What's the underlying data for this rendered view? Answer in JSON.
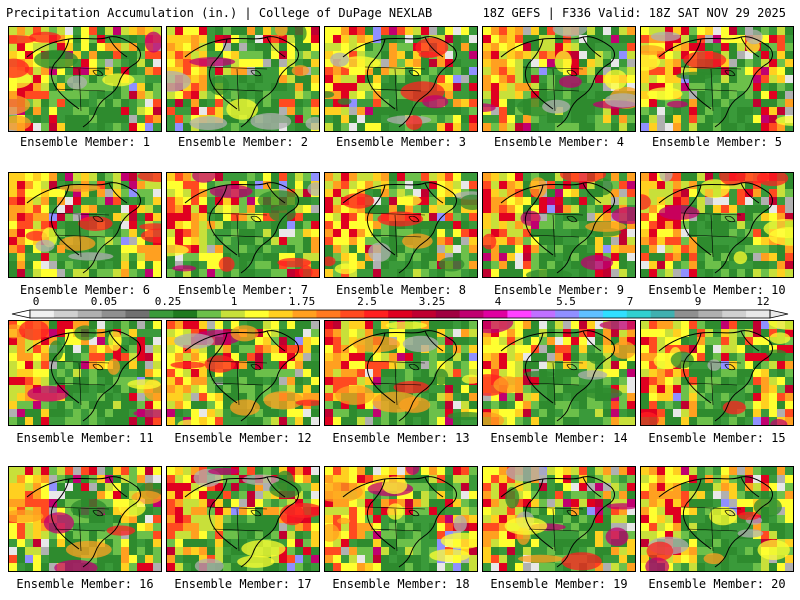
{
  "header": {
    "left_title": "Precipitation Accumulation (in.) | College of DuPage NEXLAB",
    "right_title": "18Z GEFS | F336 Valid: 18Z SAT NOV 29 2025"
  },
  "panel_label_prefix": "Ensemble Member: ",
  "members": [
    {
      "label": "Ensemble Member: 1"
    },
    {
      "label": "Ensemble Member: 2"
    },
    {
      "label": "Ensemble Member: 3"
    },
    {
      "label": "Ensemble Member: 4"
    },
    {
      "label": "Ensemble Member: 5"
    },
    {
      "label": "Ensemble Member: 6"
    },
    {
      "label": "Ensemble Member: 7"
    },
    {
      "label": "Ensemble Member: 8"
    },
    {
      "label": "Ensemble Member: 9"
    },
    {
      "label": "Ensemble Member: 10"
    },
    {
      "label": "Ensemble Member: 11"
    },
    {
      "label": "Ensemble Member: 12"
    },
    {
      "label": "Ensemble Member: 13"
    },
    {
      "label": "Ensemble Member: 14"
    },
    {
      "label": "Ensemble Member: 15"
    },
    {
      "label": "Ensemble Member: 16"
    },
    {
      "label": "Ensemble Member: 17"
    },
    {
      "label": "Ensemble Member: 18"
    },
    {
      "label": "Ensemble Member: 19"
    },
    {
      "label": "Ensemble Member: 20"
    }
  ],
  "colorbar": {
    "tick_labels": [
      "0",
      "0.05",
      "0.25",
      "1",
      "1.75",
      "2.5",
      "3.25",
      "4",
      "5.5",
      "7",
      "9",
      "12"
    ],
    "colors": [
      "#f0f0f0",
      "#d0d0d0",
      "#b0b0b0",
      "#909090",
      "#707070",
      "#3a9a3a",
      "#1f7a1f",
      "#6cc04a",
      "#c8e03a",
      "#ffff30",
      "#ffd020",
      "#ffa020",
      "#ff7a20",
      "#ff4a20",
      "#ff2020",
      "#e00020",
      "#c00030",
      "#a00040",
      "#c00070",
      "#e000a0",
      "#ff40ff",
      "#c070ff",
      "#9090ff",
      "#60c0ff",
      "#30e0ff",
      "#30d0d0",
      "#40b0b0",
      "#909090",
      "#b0b0b0",
      "#d0d0d0",
      "#e8e8e8"
    ]
  }
}
